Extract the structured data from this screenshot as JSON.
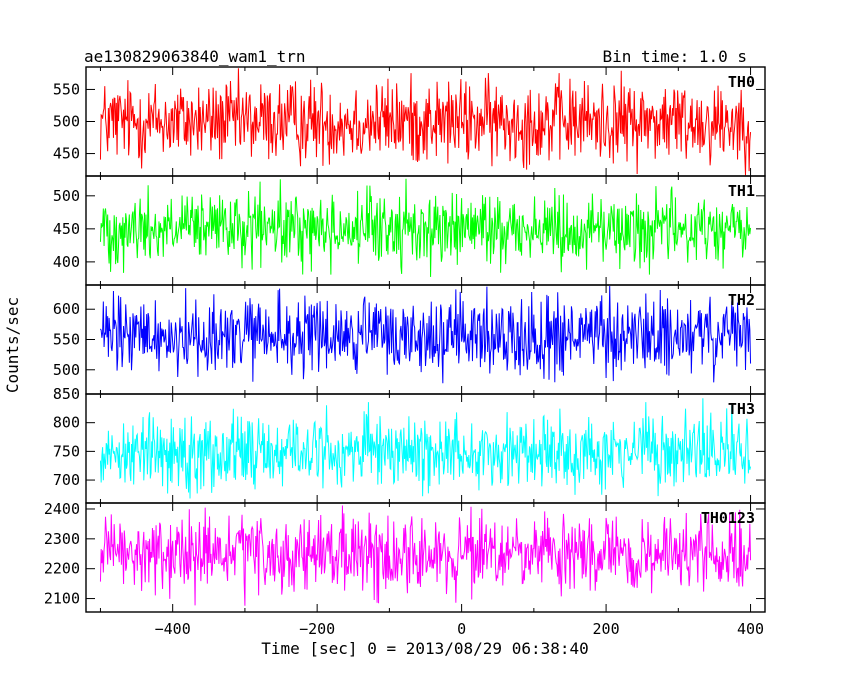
{
  "header": {
    "title": "ae130829063840_wam1_trn",
    "bin_time": "Bin time: 1.0 s"
  },
  "chart_data": {
    "type": "line",
    "title": "ae130829063840_wam1_trn",
    "subtitle": "Bin time: 1.0 s",
    "xlabel": "Time [sec] 0 = 2013/08/29 06:38:40",
    "ylabel": "Counts/sec",
    "xlim": [
      -520,
      420
    ],
    "x_range": [
      -500,
      400
    ],
    "x_step": 1,
    "x_ticks": [
      -400,
      -200,
      0,
      200,
      400
    ],
    "x_tick_labels": [
      "−400",
      "−200",
      "0",
      "200",
      "400"
    ],
    "grid": false,
    "legend": "none",
    "series": [
      {
        "name": "TH0",
        "color": "#ff0000",
        "mean": 500,
        "spread": 38,
        "ylim": [
          415,
          585
        ],
        "y_ticks": [
          450,
          500,
          550
        ],
        "y_tick_labels": [
          "450",
          "500",
          "550"
        ]
      },
      {
        "name": "TH1",
        "color": "#00ff00",
        "mean": 450,
        "spread": 32,
        "ylim": [
          365,
          530
        ],
        "y_ticks": [
          400,
          450,
          500
        ],
        "y_tick_labels": [
          "400",
          "450",
          "500"
        ]
      },
      {
        "name": "TH2",
        "color": "#0000ff",
        "mean": 555,
        "spread": 38,
        "ylim": [
          460,
          640
        ],
        "y_ticks": [
          500,
          550,
          600
        ],
        "y_tick_labels": [
          "500",
          "550",
          "600"
        ]
      },
      {
        "name": "TH3",
        "color": "#00ffff",
        "mean": 750,
        "spread": 38,
        "ylim": [
          660,
          850
        ],
        "y_ticks": [
          700,
          750,
          800,
          850
        ],
        "y_tick_labels": [
          "700",
          "750",
          "800",
          "850"
        ]
      },
      {
        "name": "TH0123",
        "color": "#ff00ff",
        "mean": 2245,
        "spread": 75,
        "ylim": [
          2055,
          2420
        ],
        "y_ticks": [
          2100,
          2200,
          2300,
          2400
        ],
        "y_tick_labels": [
          "2100",
          "2200",
          "2300",
          "2400"
        ]
      }
    ]
  }
}
